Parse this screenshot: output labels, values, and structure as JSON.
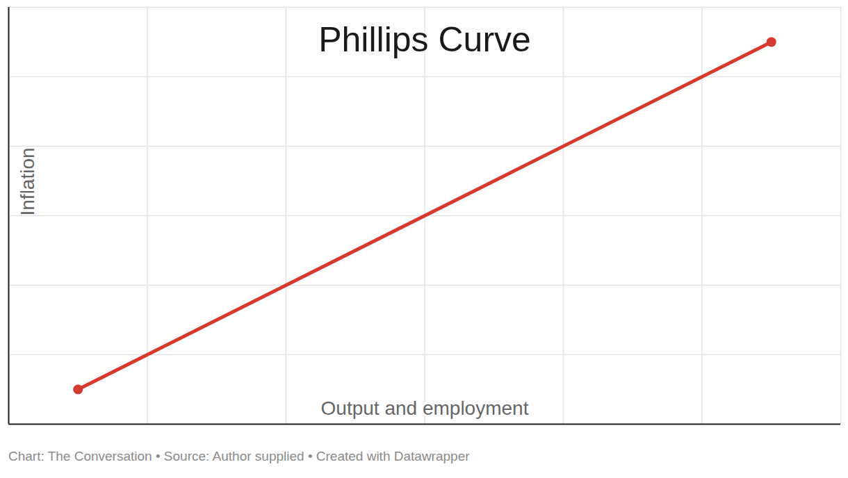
{
  "chart_data": {
    "type": "line",
    "title": "Phillips Curve",
    "x_label": "Output and employment",
    "y_label": "Inflation",
    "caption": "Chart: The Conversation • Source: Author supplied • Created with Datawrapper",
    "x": [
      0.5,
      5.5
    ],
    "values": [
      0.5,
      5.5
    ],
    "color": "#d63a2f",
    "marker": "circle",
    "xlim": [
      0,
      6
    ],
    "ylim": [
      0,
      6
    ],
    "xticks": [
      0,
      1,
      2,
      3,
      4,
      5,
      6
    ],
    "yticks": [
      0,
      1,
      2,
      3,
      4,
      5,
      6
    ],
    "grid": true,
    "tick_labels": false
  }
}
